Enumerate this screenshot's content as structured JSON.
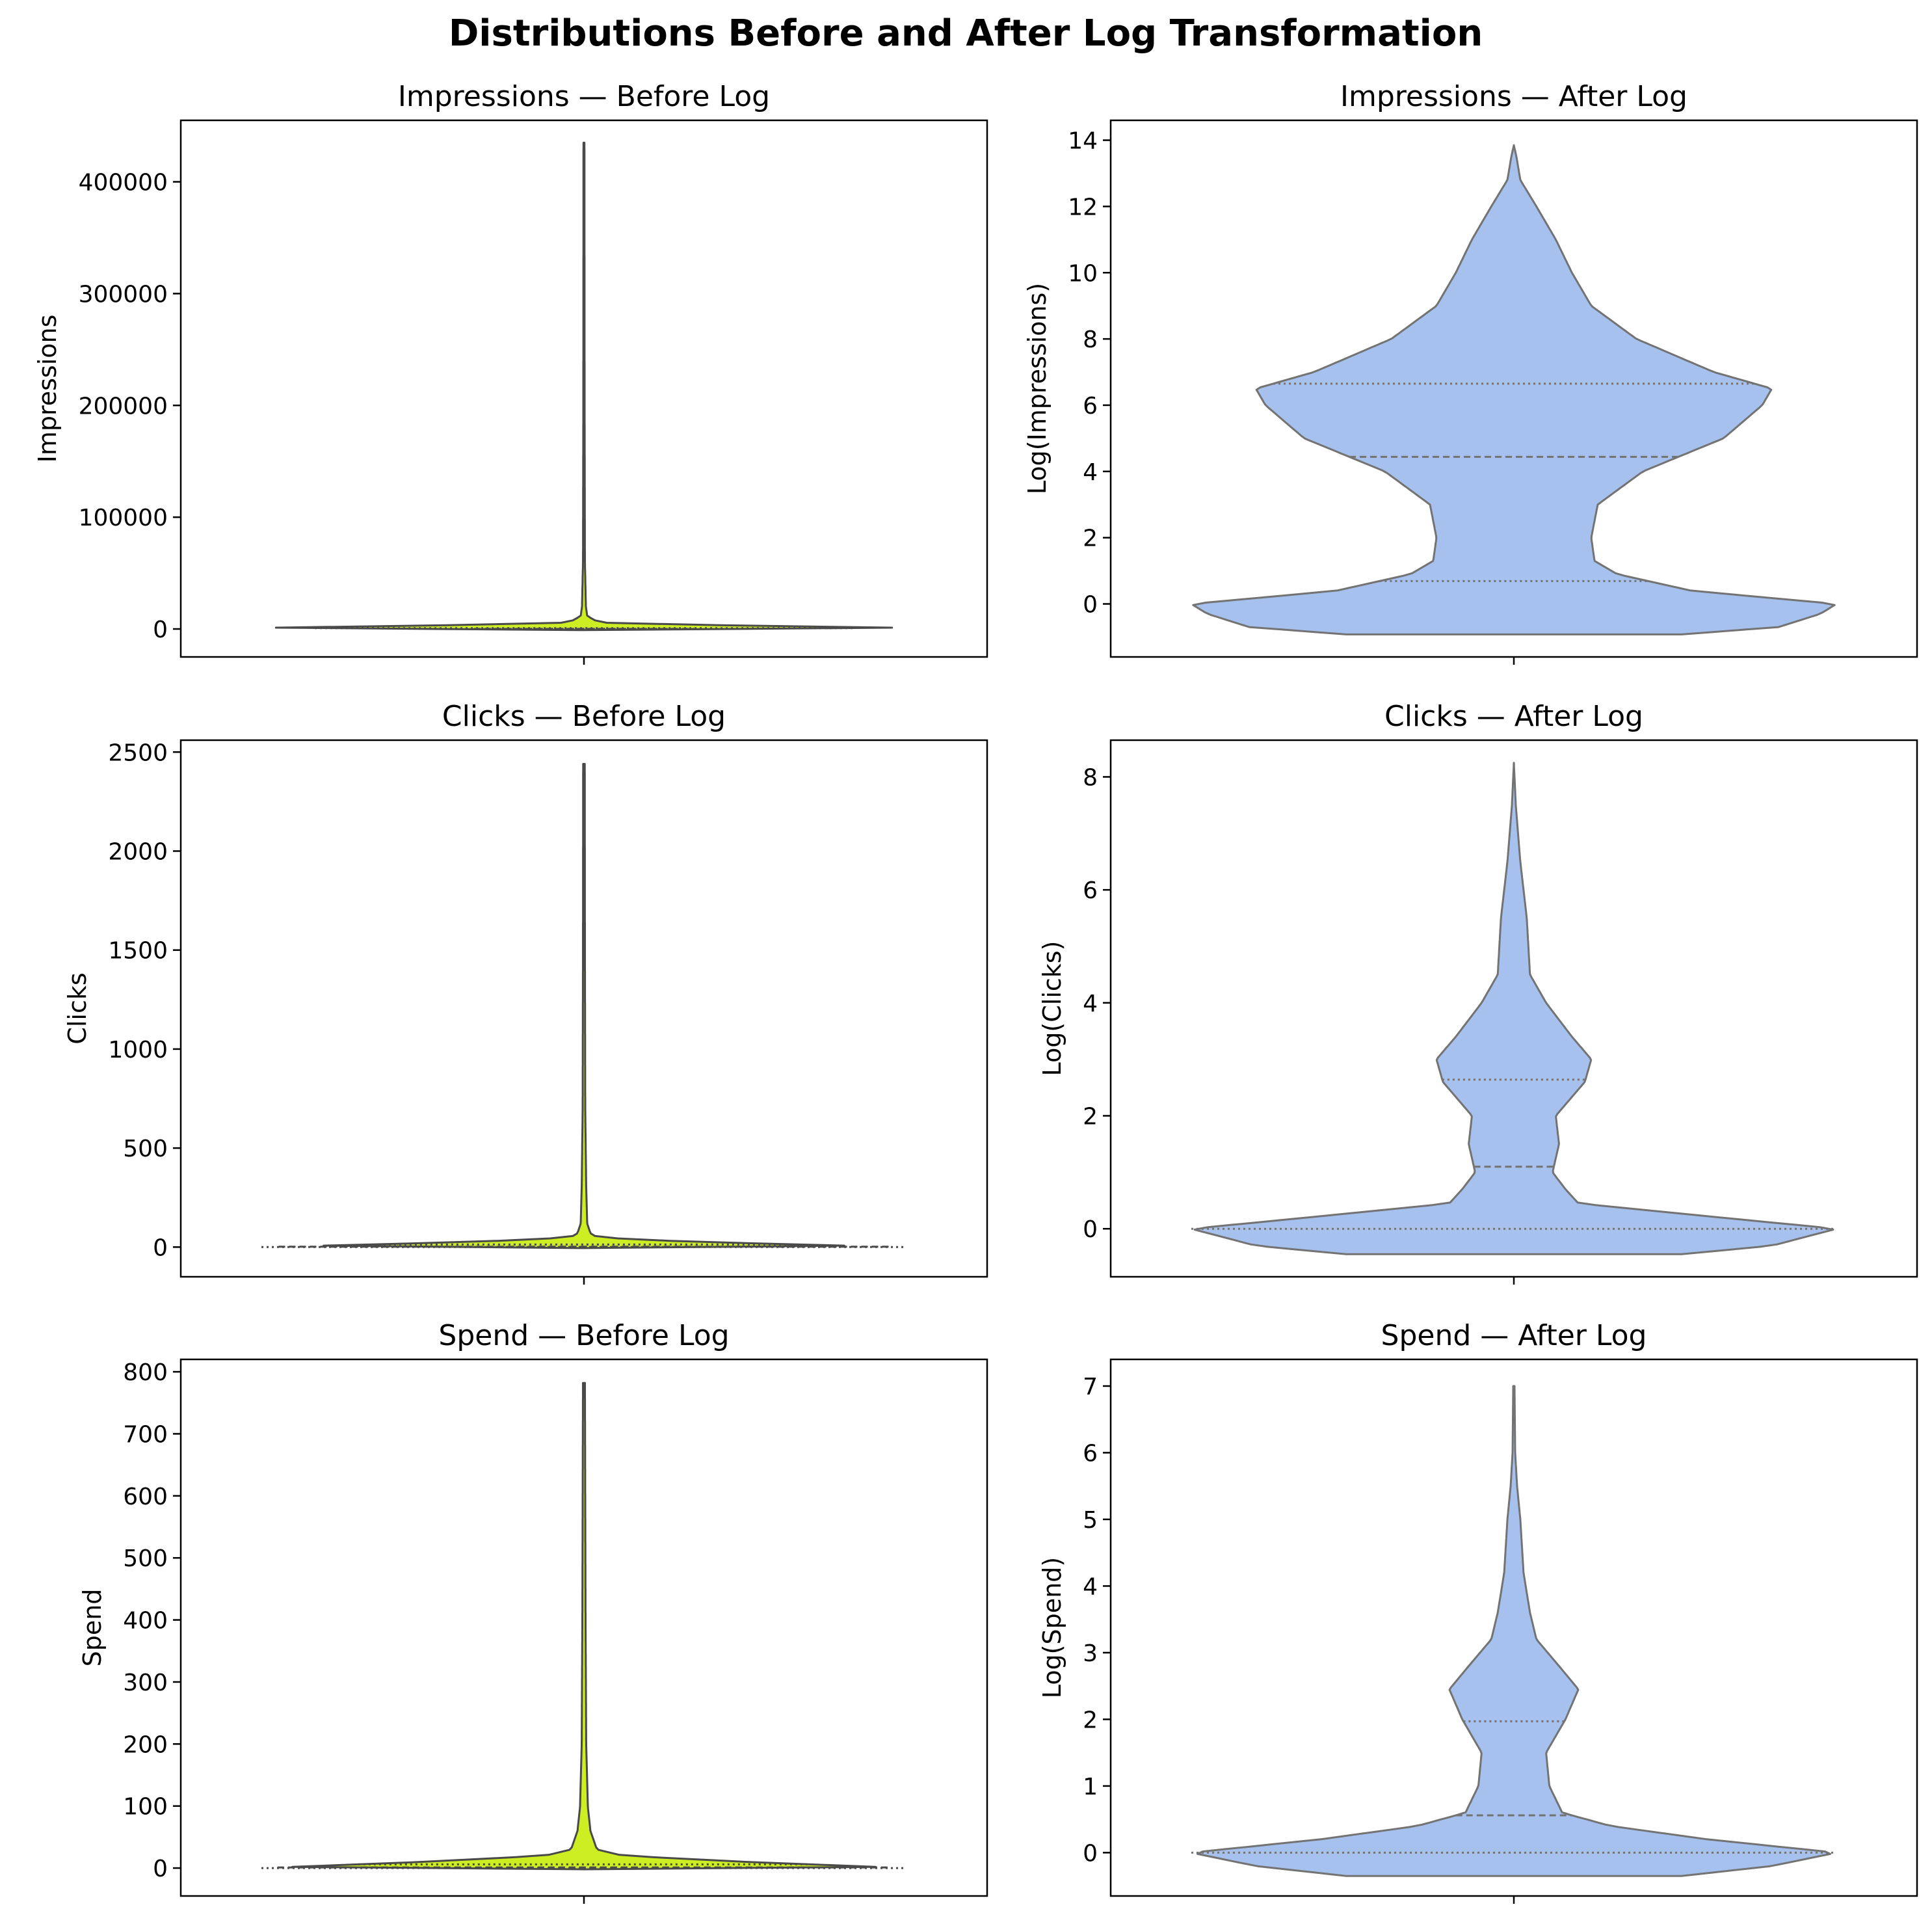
{
  "figure": {
    "title": "Distributions Before and After Log Transformation",
    "violin_edge_color": "#4a4a4a",
    "violin_edge_color_log": "#737373",
    "before_fill": "#ccee22",
    "after_fill": "#a6c1ed"
  },
  "chart_data": [
    {
      "type": "violin",
      "title": "Impressions — Before Log",
      "ylabel": "Impressions",
      "xlabel": "",
      "ylim": [
        -25000,
        455000
      ],
      "yticks": [
        0,
        100000,
        200000,
        300000,
        400000
      ],
      "fill": "#ccee22",
      "edge": "#4a4a4a",
      "quartile_lines": [
        0,
        85,
        770
      ],
      "profile": [
        [
          -1000,
          0
        ],
        [
          0,
          0.28
        ],
        [
          1000,
          1.0
        ],
        [
          3000,
          0.5
        ],
        [
          5000,
          0.08
        ],
        [
          8000,
          0.03
        ],
        [
          12000,
          0.01
        ],
        [
          20000,
          0.006
        ],
        [
          60000,
          0.003
        ],
        [
          200000,
          0.002
        ],
        [
          435000,
          0.0015
        ]
      ]
    },
    {
      "type": "violin",
      "title": "Impressions — After Log",
      "ylabel": "Log(Impressions)",
      "xlabel": "",
      "ylim": [
        -1.6,
        14.6
      ],
      "yticks": [
        0,
        2,
        4,
        6,
        8,
        10,
        12,
        14
      ],
      "fill": "#a6c1ed",
      "edge": "#737373",
      "quartile_lines": [
        0.69,
        4.44,
        6.65
      ],
      "profile": [
        [
          -0.92,
          0.52
        ],
        [
          -0.7,
          0.82
        ],
        [
          -0.3,
          0.95
        ],
        [
          0,
          1.0
        ],
        [
          0.4,
          0.55
        ],
        [
          0.9,
          0.32
        ],
        [
          1.3,
          0.25
        ],
        [
          2.0,
          0.24
        ],
        [
          3.0,
          0.26
        ],
        [
          4.0,
          0.4
        ],
        [
          5.0,
          0.65
        ],
        [
          6.0,
          0.77
        ],
        [
          6.5,
          0.8
        ],
        [
          7.0,
          0.62
        ],
        [
          8.0,
          0.38
        ],
        [
          9.0,
          0.24
        ],
        [
          10.0,
          0.18
        ],
        [
          11.0,
          0.13
        ],
        [
          12.0,
          0.07
        ],
        [
          12.8,
          0.02
        ],
        [
          13.5,
          0.008
        ],
        [
          13.85,
          0
        ]
      ]
    },
    {
      "type": "violin",
      "title": "Clicks — Before Log",
      "ylabel": "Clicks",
      "xlabel": "",
      "ylim": [
        -150,
        2560
      ],
      "yticks": [
        0,
        500,
        1000,
        1500,
        2000,
        2500
      ],
      "fill": "#ccee22",
      "edge": "#4a4a4a",
      "quartile_lines": [
        0,
        2,
        13
      ],
      "profile": [
        [
          -5,
          0
        ],
        [
          0,
          1.0
        ],
        [
          15,
          0.6
        ],
        [
          35,
          0.2
        ],
        [
          50,
          0.04
        ],
        [
          70,
          0.02
        ],
        [
          120,
          0.01
        ],
        [
          300,
          0.007
        ],
        [
          700,
          0.004
        ],
        [
          1500,
          0.003
        ],
        [
          2440,
          0.0025
        ]
      ]
    },
    {
      "type": "violin",
      "title": "Clicks — After Log",
      "ylabel": "Log(Clicks)",
      "xlabel": "",
      "ylim": [
        -0.85,
        8.65
      ],
      "yticks": [
        0,
        2,
        4,
        6,
        8
      ],
      "fill": "#a6c1ed",
      "edge": "#737373",
      "quartile_lines": [
        0.0,
        1.1,
        2.64
      ],
      "profile": [
        [
          -0.45,
          0.52
        ],
        [
          -0.3,
          0.8
        ],
        [
          0,
          1.0
        ],
        [
          0.25,
          0.55
        ],
        [
          0.45,
          0.2
        ],
        [
          0.7,
          0.16
        ],
        [
          1.0,
          0.12
        ],
        [
          1.5,
          0.14
        ],
        [
          2.0,
          0.13
        ],
        [
          2.6,
          0.22
        ],
        [
          3.0,
          0.24
        ],
        [
          3.4,
          0.18
        ],
        [
          4.0,
          0.1
        ],
        [
          4.5,
          0.05
        ],
        [
          5.5,
          0.04
        ],
        [
          6.5,
          0.02
        ],
        [
          7.5,
          0.006
        ],
        [
          8.25,
          0
        ]
      ]
    },
    {
      "type": "violin",
      "title": "Spend — Before Log",
      "ylabel": "Spend",
      "xlabel": "",
      "ylim": [
        -45,
        820
      ],
      "yticks": [
        0,
        100,
        200,
        300,
        400,
        500,
        600,
        700,
        800
      ],
      "fill": "#ccee22",
      "edge": "#4a4a4a",
      "quartile_lines": [
        0,
        1,
        6
      ],
      "profile": [
        [
          -2,
          0
        ],
        [
          0,
          1.0
        ],
        [
          10,
          0.5
        ],
        [
          20,
          0.12
        ],
        [
          30,
          0.04
        ],
        [
          60,
          0.02
        ],
        [
          100,
          0.012
        ],
        [
          200,
          0.007
        ],
        [
          400,
          0.005
        ],
        [
          782,
          0.003
        ]
      ]
    },
    {
      "type": "violin",
      "title": "Spend — After Log",
      "ylabel": "Log(Spend)",
      "xlabel": "",
      "ylim": [
        -0.65,
        7.4
      ],
      "yticks": [
        0,
        1,
        2,
        3,
        4,
        5,
        6,
        7
      ],
      "fill": "#a6c1ed",
      "edge": "#737373",
      "quartile_lines": [
        0.0,
        0.56,
        1.97
      ],
      "profile": [
        [
          -0.35,
          0.52
        ],
        [
          -0.2,
          0.8
        ],
        [
          0,
          1.0
        ],
        [
          0.2,
          0.6
        ],
        [
          0.4,
          0.3
        ],
        [
          0.6,
          0.15
        ],
        [
          1.0,
          0.11
        ],
        [
          1.5,
          0.1
        ],
        [
          2.0,
          0.16
        ],
        [
          2.45,
          0.2
        ],
        [
          2.8,
          0.14
        ],
        [
          3.2,
          0.07
        ],
        [
          3.6,
          0.05
        ],
        [
          4.2,
          0.03
        ],
        [
          5.0,
          0.02
        ],
        [
          5.5,
          0.01
        ],
        [
          6.0,
          0.004
        ],
        [
          7.0,
          0.002
        ]
      ]
    }
  ]
}
